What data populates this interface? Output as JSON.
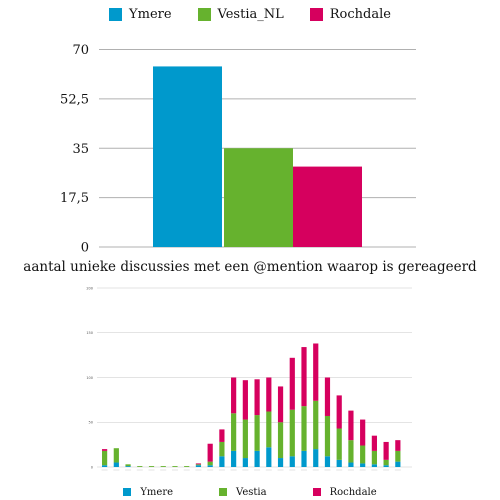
{
  "colors": {
    "Ymere": "#0099cc",
    "Vestia": "#66b22e",
    "Rochdale": "#d6005e"
  },
  "chart_data": [
    {
      "type": "bar",
      "categories": [
        "Ymere",
        "Vestia_NL",
        "Rochdale"
      ],
      "values": [
        64,
        35,
        28.5
      ],
      "legend": [
        "Ymere",
        "Vestia_NL",
        "Rochdale"
      ],
      "legend_position": "top",
      "ylim": [
        0,
        70
      ],
      "yticks": [
        "0",
        "17,5",
        "35",
        "52,5",
        "70"
      ],
      "caption": "aantal unieke discussies met een @mention waarop is gereageerd",
      "grid": true
    },
    {
      "type": "bar",
      "stacked": true,
      "legend": [
        "Ymere",
        "Vestia",
        "Rochdale"
      ],
      "legend_position": "bottom",
      "ylim": [
        0,
        200
      ],
      "yticks": [
        "0",
        "50",
        "100",
        "150",
        "200"
      ],
      "series": [
        {
          "name": "Ymere",
          "values": [
            2,
            5,
            1,
            0,
            0,
            0,
            0,
            0,
            2,
            2,
            12,
            18,
            10,
            18,
            22,
            10,
            12,
            18,
            20,
            12,
            8,
            5,
            4,
            3,
            2,
            6
          ]
        },
        {
          "name": "Vestia",
          "values": [
            16,
            16,
            2,
            1,
            1,
            1,
            1,
            1,
            1,
            4,
            16,
            42,
            43,
            40,
            40,
            40,
            52,
            50,
            54,
            45,
            35,
            25,
            20,
            15,
            6,
            12
          ]
        },
        {
          "name": "Rochdale",
          "values": [
            2,
            0,
            0,
            0,
            0,
            0,
            0,
            0,
            1,
            20,
            14,
            40,
            44,
            40,
            38,
            40,
            58,
            66,
            64,
            43,
            37,
            33,
            29,
            17,
            20,
            12
          ]
        }
      ],
      "grid": true
    }
  ]
}
